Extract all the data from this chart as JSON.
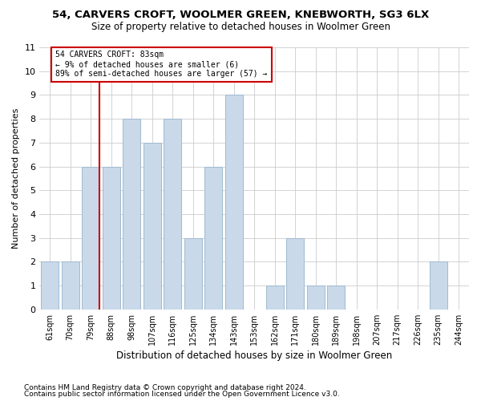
{
  "title1": "54, CARVERS CROFT, WOOLMER GREEN, KNEBWORTH, SG3 6LX",
  "title2": "Size of property relative to detached houses in Woolmer Green",
  "xlabel": "Distribution of detached houses by size in Woolmer Green",
  "ylabel": "Number of detached properties",
  "categories": [
    "61sqm",
    "70sqm",
    "79sqm",
    "88sqm",
    "98sqm",
    "107sqm",
    "116sqm",
    "125sqm",
    "134sqm",
    "143sqm",
    "153sqm",
    "162sqm",
    "171sqm",
    "180sqm",
    "189sqm",
    "198sqm",
    "207sqm",
    "217sqm",
    "226sqm",
    "235sqm",
    "244sqm"
  ],
  "values": [
    2,
    2,
    6,
    6,
    8,
    7,
    8,
    3,
    6,
    9,
    0,
    1,
    3,
    1,
    1,
    0,
    0,
    0,
    0,
    2,
    0
  ],
  "bar_color": "#c9d9ea",
  "bar_edgecolor": "#a0bad0",
  "ylim": [
    0,
    11
  ],
  "yticks": [
    0,
    1,
    2,
    3,
    4,
    5,
    6,
    7,
    8,
    9,
    10,
    11
  ],
  "annotation_line1": "54 CARVERS CROFT: 83sqm",
  "annotation_line2": "← 9% of detached houses are smaller (6)",
  "annotation_line3": "89% of semi-detached houses are larger (57) →",
  "annotation_box_color": "#ffffff",
  "annotation_box_edgecolor": "#cc0000",
  "marker_line_color": "#cc0000",
  "footer1": "Contains HM Land Registry data © Crown copyright and database right 2024.",
  "footer2": "Contains public sector information licensed under the Open Government Licence v3.0."
}
